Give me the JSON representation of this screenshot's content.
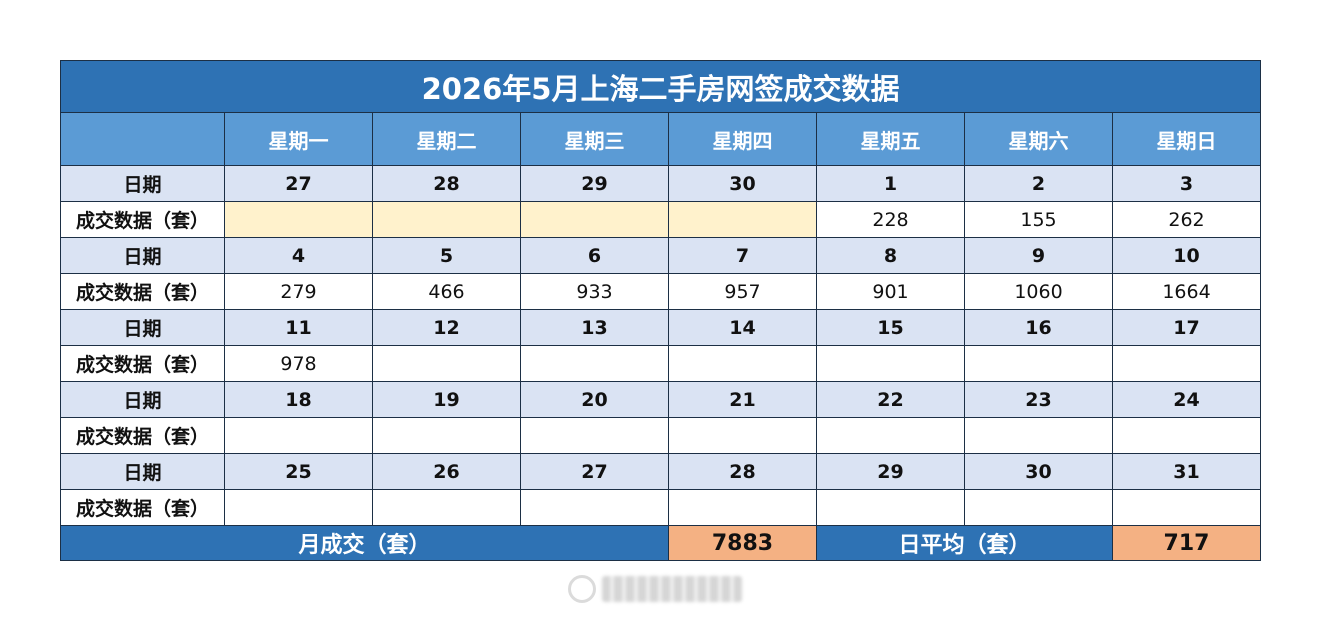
{
  "title": "2026年5月上海二手房网签成交数据",
  "weekdays": [
    "星期一",
    "星期二",
    "星期三",
    "星期四",
    "星期五",
    "星期六",
    "星期日"
  ],
  "date_label": "日期",
  "count_label": "成交数据（套）",
  "weeks": [
    {
      "dates": [
        "27",
        "28",
        "29",
        "30",
        "1",
        "2",
        "3"
      ],
      "counts": [
        "",
        "",
        "",
        "",
        "228",
        "155",
        "262"
      ],
      "pending": [
        true,
        true,
        true,
        true,
        false,
        false,
        false
      ]
    },
    {
      "dates": [
        "4",
        "5",
        "6",
        "7",
        "8",
        "9",
        "10"
      ],
      "counts": [
        "279",
        "466",
        "933",
        "957",
        "901",
        "1060",
        "1664"
      ],
      "pending": [
        false,
        false,
        false,
        false,
        false,
        false,
        false
      ]
    },
    {
      "dates": [
        "11",
        "12",
        "13",
        "14",
        "15",
        "16",
        "17"
      ],
      "counts": [
        "978",
        "",
        "",
        "",
        "",
        "",
        ""
      ],
      "pending": [
        false,
        false,
        false,
        false,
        false,
        false,
        false
      ]
    },
    {
      "dates": [
        "18",
        "19",
        "20",
        "21",
        "22",
        "23",
        "24"
      ],
      "counts": [
        "",
        "",
        "",
        "",
        "",
        "",
        ""
      ],
      "pending": [
        false,
        false,
        false,
        false,
        false,
        false,
        false
      ]
    },
    {
      "dates": [
        "25",
        "26",
        "27",
        "28",
        "29",
        "30",
        "31"
      ],
      "counts": [
        "",
        "",
        "",
        "",
        "",
        "",
        ""
      ],
      "pending": [
        false,
        false,
        false,
        false,
        false,
        false,
        false
      ]
    }
  ],
  "summary": {
    "monthly_label": "月成交（套）",
    "monthly_value": "7883",
    "daily_avg_label": "日平均（套）",
    "daily_avg_value": "717"
  },
  "colors": {
    "title_bg": "#2e72b4",
    "weekday_bg": "#5b9bd5",
    "date_row_bg": "#dae3f3",
    "pending_bg": "#fff2cc",
    "highlight_bg": "#f4b183"
  }
}
